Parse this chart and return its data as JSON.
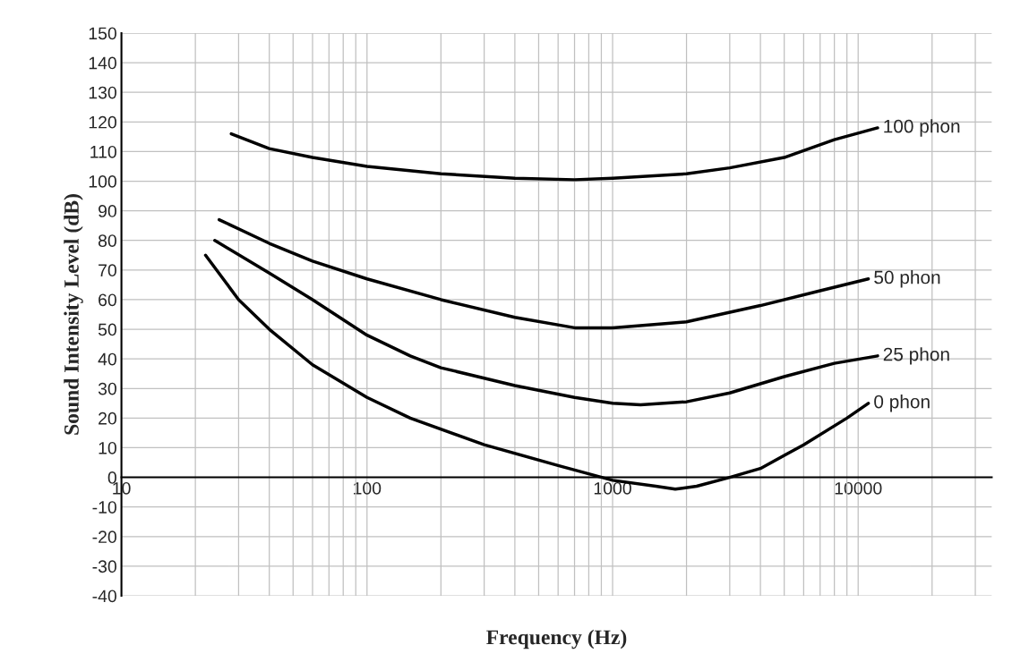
{
  "chart_data": {
    "type": "line",
    "xlabel": "Frequency (Hz)",
    "ylabel": "Sound Intensity Level (dB)",
    "log": "x",
    "xlim": [
      10,
      35000
    ],
    "xticks": [
      10,
      100,
      1000,
      10000
    ],
    "ylim": [
      -40,
      150
    ],
    "yticks": [
      -40,
      -30,
      -20,
      -10,
      0,
      10,
      20,
      30,
      40,
      50,
      60,
      70,
      80,
      90,
      100,
      110,
      120,
      130,
      140,
      150
    ],
    "grid": true,
    "marker": "none",
    "line_style": "solid",
    "series": [
      {
        "name": "100 phon",
        "color": "#000000",
        "x": [
          28,
          40,
          60,
          100,
          200,
          400,
          700,
          1000,
          2000,
          3000,
          5000,
          8000,
          12000
        ],
        "values": [
          116,
          111,
          108,
          105,
          102.5,
          101,
          100.5,
          101,
          102.5,
          104.5,
          108,
          114,
          118
        ]
      },
      {
        "name": "50 phon",
        "color": "#000000",
        "x": [
          25,
          40,
          60,
          100,
          200,
          400,
          700,
          1000,
          2000,
          4000,
          7000,
          11000
        ],
        "values": [
          87,
          79,
          73,
          67,
          60,
          54,
          50.5,
          50.5,
          52.5,
          58,
          63,
          67
        ]
      },
      {
        "name": "25 phon",
        "color": "#000000",
        "x": [
          24,
          40,
          60,
          100,
          150,
          200,
          400,
          700,
          1000,
          1300,
          2000,
          3000,
          5000,
          8000,
          12000
        ],
        "values": [
          80,
          69,
          60,
          48,
          41,
          37,
          31,
          27,
          25,
          24.5,
          25.5,
          28.5,
          34,
          38.5,
          41
        ]
      },
      {
        "name": "0 phon",
        "color": "#000000",
        "x": [
          22,
          30,
          40,
          60,
          100,
          150,
          300,
          600,
          1000,
          1500,
          1800,
          2200,
          3000,
          4000,
          6000,
          9000,
          11000
        ],
        "values": [
          75,
          60,
          50,
          38,
          27,
          20,
          11,
          4,
          -1,
          -3,
          -4,
          -3,
          0,
          3,
          11,
          20,
          25
        ]
      }
    ]
  }
}
